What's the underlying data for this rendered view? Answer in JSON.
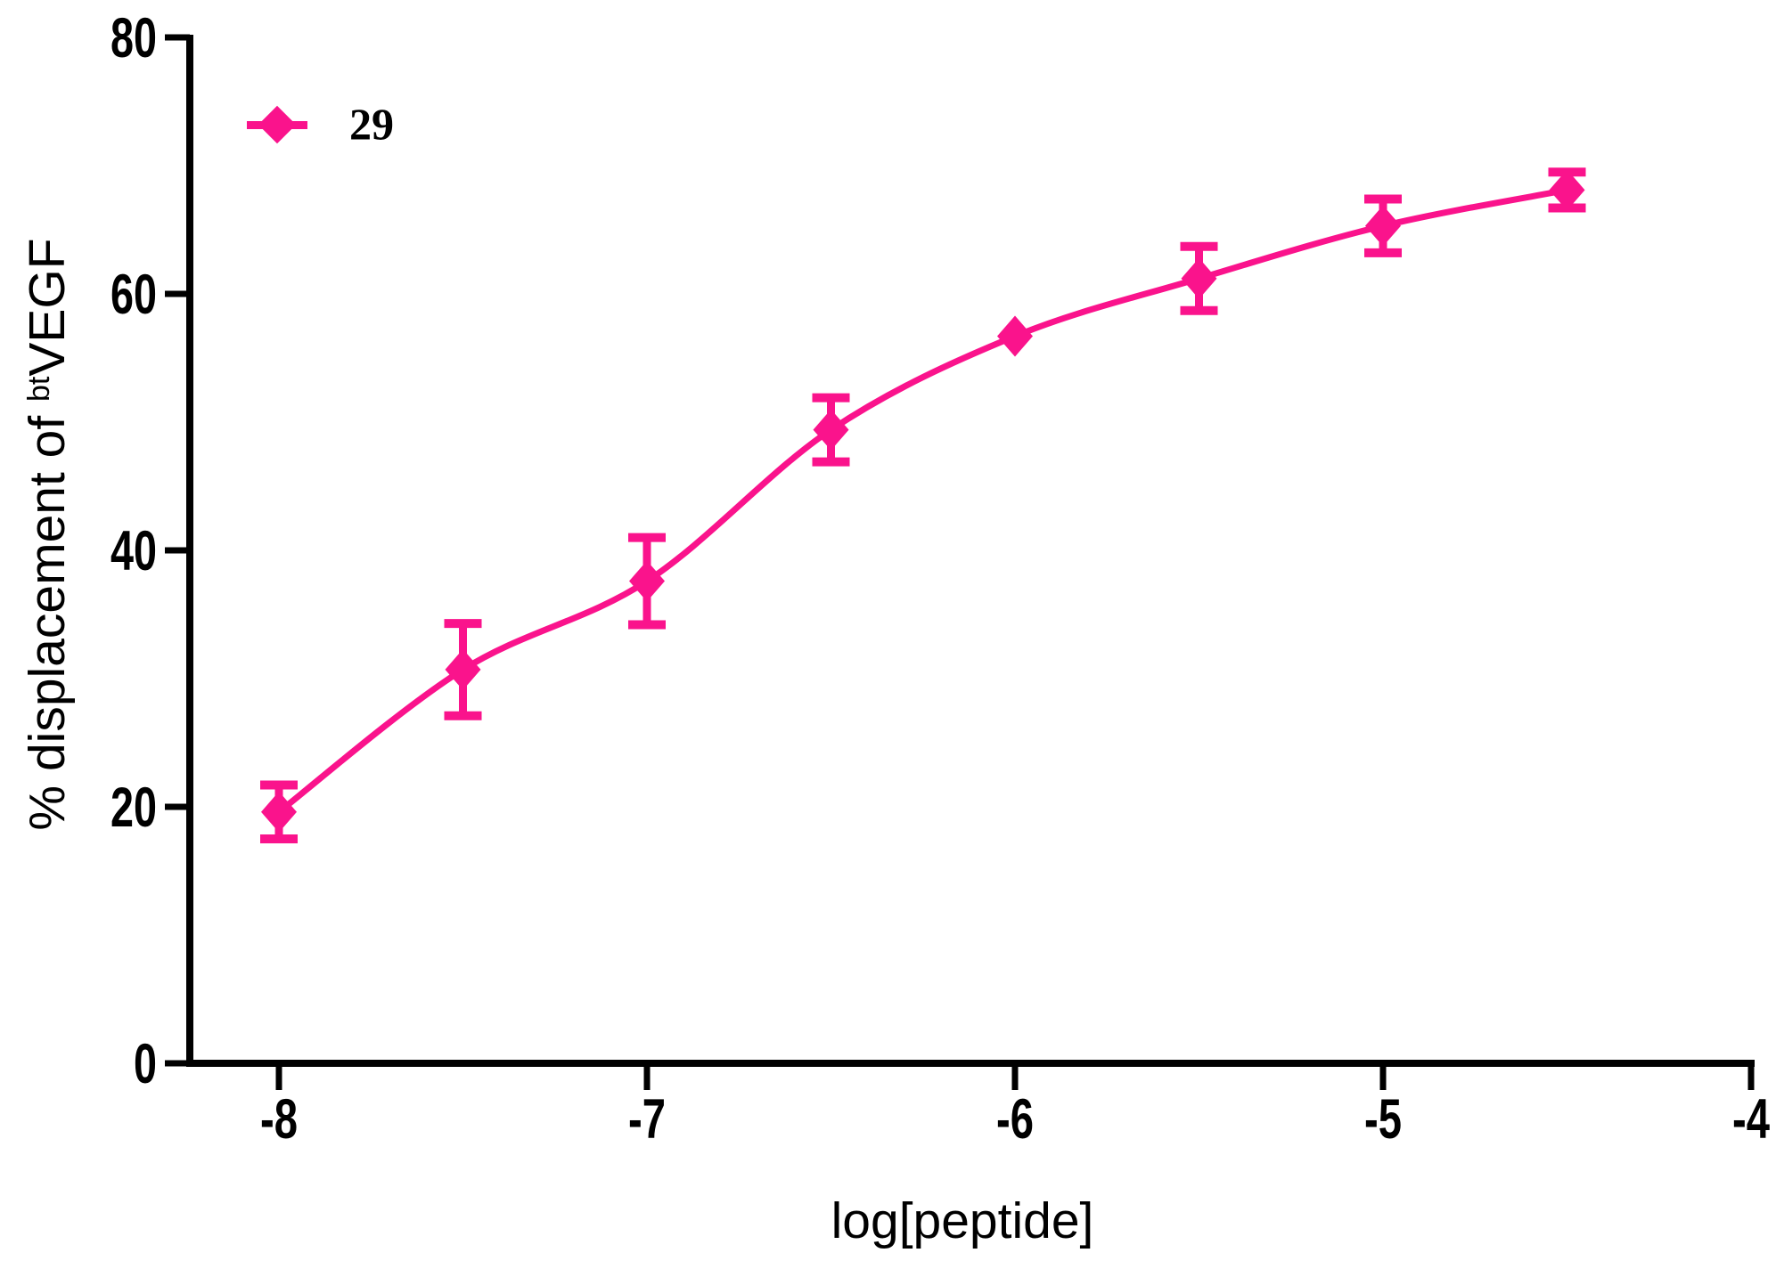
{
  "chart_data": {
    "type": "scatter",
    "title": "",
    "xlabel": "log[peptide]",
    "ylabel": {
      "prefix": "% displacement of ",
      "sup": "bt",
      "main": "VEGF"
    },
    "series": [
      {
        "name": "29",
        "color": "#FA138C",
        "marker": "diamond",
        "line": "smooth-fit",
        "x": [
          -8.0,
          -7.5,
          -7.0,
          -6.5,
          -6.0,
          -5.5,
          -5.0,
          -4.5
        ],
        "y": [
          19.6,
          30.7,
          37.6,
          49.4,
          56.7,
          61.2,
          65.3,
          68.1
        ],
        "y_err": [
          2.1,
          3.6,
          3.4,
          2.5,
          0.0,
          2.5,
          2.1,
          1.4
        ]
      }
    ],
    "x_ticks": {
      "values": [
        -8,
        -7,
        -6,
        -5,
        -4
      ],
      "labels": [
        "-8",
        "-7",
        "-6",
        "-5",
        "-4"
      ]
    },
    "y_ticks": {
      "values": [
        0,
        20,
        40,
        60,
        80
      ],
      "labels": [
        "0",
        "20",
        "40",
        "60",
        "80"
      ]
    },
    "xlim": [
      -8.24,
      -4.0
    ],
    "ylim": [
      0,
      80
    ],
    "grid": false,
    "legend": {
      "position": "top-left",
      "entries": [
        {
          "label": "29",
          "color": "#FA138C",
          "marker": "diamond-line"
        }
      ]
    },
    "axis_color": "#000000",
    "background": "#FFFFFF"
  }
}
